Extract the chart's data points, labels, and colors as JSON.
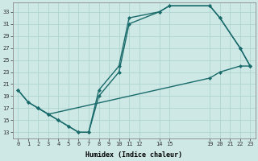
{
  "background_color": "#cde8e5",
  "grid_color": "#aed4d0",
  "line_color": "#1a6b6b",
  "xlim": [
    -0.5,
    23.5
  ],
  "ylim": [
    12.0,
    34.5
  ],
  "xtick_positions": [
    0,
    1,
    2,
    3,
    4,
    5,
    6,
    7,
    8,
    9,
    10,
    11,
    12,
    14,
    15,
    19,
    20,
    21,
    22,
    23
  ],
  "xtick_labels": [
    "0",
    "1",
    "2",
    "3",
    "4",
    "5",
    "6",
    "7",
    "8",
    "9",
    "10",
    "11",
    "12",
    "14",
    "15",
    "19",
    "20",
    "21",
    "22",
    "23"
  ],
  "ytick_positions": [
    13,
    15,
    17,
    19,
    21,
    23,
    25,
    27,
    29,
    31,
    33
  ],
  "ytick_labels": [
    "13",
    "15",
    "17",
    "19",
    "21",
    "23",
    "25",
    "27",
    "29",
    "31",
    "33"
  ],
  "xlabel": "Humidex (Indice chaleur)",
  "line1_x": [
    0,
    1,
    2,
    3,
    4,
    5,
    6,
    7,
    8,
    10,
    11,
    14,
    15,
    19,
    20,
    22,
    23
  ],
  "line1_y": [
    20,
    18,
    17,
    16,
    15,
    14,
    13,
    13,
    19,
    23,
    31,
    33,
    34,
    34,
    32,
    27,
    24
  ],
  "line2_x": [
    0,
    1,
    2,
    3,
    19,
    20,
    22,
    23
  ],
  "line2_y": [
    20,
    18,
    17,
    16,
    22,
    23,
    24,
    24
  ],
  "line3_x": [
    2,
    3,
    4,
    5,
    6,
    7,
    8,
    10,
    11,
    14,
    15,
    19,
    20,
    22,
    23
  ],
  "line3_y": [
    17,
    16,
    15,
    14,
    13,
    13,
    20,
    24,
    32,
    33,
    34,
    34,
    32,
    27,
    24
  ]
}
